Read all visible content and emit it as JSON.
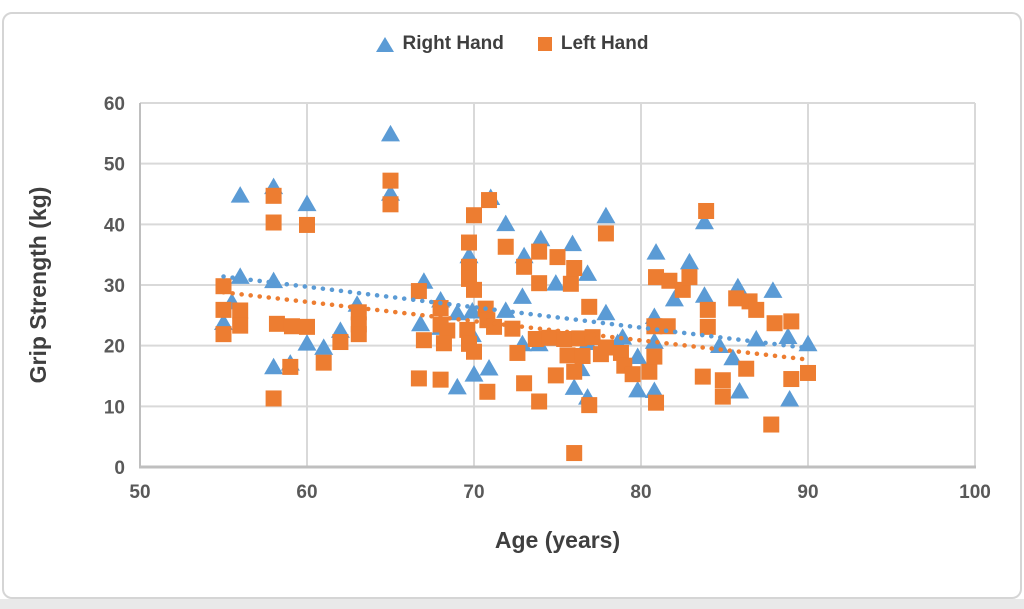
{
  "legend": [
    {
      "label": "Right Hand",
      "marker": "triangle",
      "color": "#5B9BD5"
    },
    {
      "label": "Left Hand",
      "marker": "square",
      "color": "#ED7D31"
    }
  ],
  "axes": {
    "x": {
      "title": "Age (years)",
      "min": 50,
      "max": 100,
      "ticks": [
        50,
        60,
        70,
        80,
        90,
        100
      ]
    },
    "y": {
      "title": "Grip Strength (kg)",
      "min": 0,
      "max": 60,
      "ticks": [
        0,
        10,
        20,
        30,
        40,
        50,
        60
      ]
    }
  },
  "colors": {
    "right_hand": "#5B9BD5",
    "left_hand": "#ED7D31",
    "gridline": "#D9D9D9",
    "axis_line": "#BFBFBF",
    "tick_text": "#595959",
    "title_text": "#3F3F3F"
  },
  "chart_data": {
    "type": "scatter",
    "title": "",
    "xlabel": "Age (years)",
    "ylabel": "Grip Strength (kg)",
    "xlim": [
      50,
      100
    ],
    "ylim": [
      0,
      60
    ],
    "grid": true,
    "legend_position": "top-center",
    "series": [
      {
        "name": "Right Hand",
        "marker": "triangle",
        "color": "#5B9BD5",
        "points": [
          [
            55,
            23.9
          ],
          [
            55.5,
            27.3
          ],
          [
            56,
            31.5
          ],
          [
            56,
            44.9
          ],
          [
            58,
            46.3
          ],
          [
            58,
            30.8
          ],
          [
            58,
            16.6
          ],
          [
            59,
            17.2
          ],
          [
            60,
            43.5
          ],
          [
            60,
            20.5
          ],
          [
            61,
            19.8
          ],
          [
            62,
            22.6
          ],
          [
            63,
            26.9
          ],
          [
            65,
            55
          ],
          [
            65,
            45.2
          ],
          [
            66.8,
            23.7
          ],
          [
            67,
            30.7
          ],
          [
            68,
            27.6
          ],
          [
            68,
            23.1
          ],
          [
            69,
            25.5
          ],
          [
            69,
            13.3
          ],
          [
            69.7,
            34.9
          ],
          [
            69.9,
            25.8
          ],
          [
            69.9,
            21.9
          ],
          [
            70,
            15.4
          ],
          [
            70.9,
            16.4
          ],
          [
            71,
            44.5
          ],
          [
            71.9,
            40.2
          ],
          [
            71.9,
            25.9
          ],
          [
            72.9,
            28.2
          ],
          [
            72.9,
            20.4
          ],
          [
            73,
            34.9
          ],
          [
            73.9,
            20.4
          ],
          [
            74,
            37.7
          ],
          [
            74.9,
            30.4
          ],
          [
            74.9,
            21.3
          ],
          [
            75.9,
            36.9
          ],
          [
            76,
            13.2
          ],
          [
            76.4,
            16.3
          ],
          [
            76.8,
            32
          ],
          [
            76.8,
            20.6
          ],
          [
            76.8,
            11.6
          ],
          [
            77.9,
            41.5
          ],
          [
            77.9,
            25.5
          ],
          [
            78.6,
            20.6
          ],
          [
            78.9,
            21.5
          ],
          [
            79.8,
            18.3
          ],
          [
            79.8,
            12.8
          ],
          [
            80.8,
            24.9
          ],
          [
            80.8,
            20.8
          ],
          [
            80.8,
            12.7
          ],
          [
            80.9,
            35.5
          ],
          [
            82,
            27.8
          ],
          [
            82.9,
            33.9
          ],
          [
            83.8,
            40.5
          ],
          [
            83.8,
            28.4
          ],
          [
            84.7,
            20.1
          ],
          [
            85.5,
            18.1
          ],
          [
            85.8,
            29.8
          ],
          [
            85.9,
            12.6
          ],
          [
            86.9,
            21.2
          ],
          [
            87.9,
            29.2
          ],
          [
            88.8,
            21.6
          ],
          [
            88.9,
            11.3
          ],
          [
            90,
            20.4
          ]
        ],
        "trendline": {
          "style": "dotted",
          "x0": 55,
          "y0": 31.4,
          "x1": 90,
          "y1": 19.6
        }
      },
      {
        "name": "Left Hand",
        "marker": "square",
        "color": "#ED7D31",
        "points": [
          [
            55,
            29.8
          ],
          [
            55,
            25.9
          ],
          [
            55,
            21.9
          ],
          [
            56,
            25.8
          ],
          [
            56,
            23.3
          ],
          [
            58,
            44.7
          ],
          [
            58,
            40.3
          ],
          [
            58.2,
            23.6
          ],
          [
            59.1,
            23.2
          ],
          [
            59,
            16.5
          ],
          [
            58,
            11.3
          ],
          [
            60,
            39.9
          ],
          [
            60,
            23.1
          ],
          [
            61,
            17.2
          ],
          [
            62,
            20.6
          ],
          [
            63.1,
            25.5
          ],
          [
            63.1,
            23.5
          ],
          [
            63.1,
            21.9
          ],
          [
            65,
            47.2
          ],
          [
            65,
            43.3
          ],
          [
            66.7,
            29
          ],
          [
            67,
            20.9
          ],
          [
            66.7,
            14.6
          ],
          [
            68,
            26.2
          ],
          [
            68,
            23.5
          ],
          [
            68.4,
            22.5
          ],
          [
            68.2,
            20.4
          ],
          [
            68,
            14.4
          ],
          [
            69.7,
            37
          ],
          [
            69.7,
            33
          ],
          [
            69.7,
            31
          ],
          [
            70,
            29.2
          ],
          [
            69.6,
            22.6
          ],
          [
            69.7,
            20.3
          ],
          [
            70,
            41.5
          ],
          [
            70,
            19
          ],
          [
            70.7,
            26.1
          ],
          [
            70.8,
            24.2
          ],
          [
            70.8,
            12.4
          ],
          [
            70.9,
            44
          ],
          [
            71.2,
            23.1
          ],
          [
            71.9,
            36.3
          ],
          [
            72.3,
            22.8
          ],
          [
            72.6,
            18.8
          ],
          [
            73,
            33
          ],
          [
            73,
            13.8
          ],
          [
            73.7,
            21.1
          ],
          [
            73.9,
            35.5
          ],
          [
            73.9,
            30.3
          ],
          [
            73.9,
            10.8
          ],
          [
            74.5,
            21.3
          ],
          [
            75.4,
            21.1
          ],
          [
            76.3,
            21.2
          ],
          [
            77.1,
            21.4
          ],
          [
            75.6,
            18.4
          ],
          [
            76.5,
            18.3
          ],
          [
            77.6,
            18.6
          ],
          [
            74.9,
            15.1
          ],
          [
            75,
            34.6
          ],
          [
            75.8,
            30.2
          ],
          [
            76,
            32.8
          ],
          [
            76,
            15.7
          ],
          [
            76.9,
            26.4
          ],
          [
            76.9,
            10.2
          ],
          [
            76,
            2.3
          ],
          [
            77.9,
            38.5
          ],
          [
            77.9,
            19.7
          ],
          [
            78.8,
            18.8
          ],
          [
            79,
            16.7
          ],
          [
            79.5,
            15.3
          ],
          [
            80.5,
            15.7
          ],
          [
            80.8,
            18.2
          ],
          [
            80.8,
            23.2
          ],
          [
            81.6,
            23.2
          ],
          [
            80.9,
            10.6
          ],
          [
            80.9,
            31.3
          ],
          [
            81.7,
            30.7
          ],
          [
            82.5,
            29.2
          ],
          [
            82.9,
            31.3
          ],
          [
            83.9,
            42.2
          ],
          [
            84,
            25.9
          ],
          [
            84,
            23.1
          ],
          [
            83.7,
            14.9
          ],
          [
            84.9,
            14.3
          ],
          [
            84.9,
            11.6
          ],
          [
            85.7,
            27.8
          ],
          [
            86.5,
            27.3
          ],
          [
            86.9,
            25.9
          ],
          [
            86.3,
            16.2
          ],
          [
            88,
            23.7
          ],
          [
            87.8,
            7
          ],
          [
            89,
            24
          ],
          [
            89,
            14.5
          ],
          [
            90,
            15.5
          ]
        ],
        "trendline": {
          "style": "dotted",
          "x0": 55,
          "y0": 28.8,
          "x1": 90,
          "y1": 17.7
        }
      }
    ]
  }
}
